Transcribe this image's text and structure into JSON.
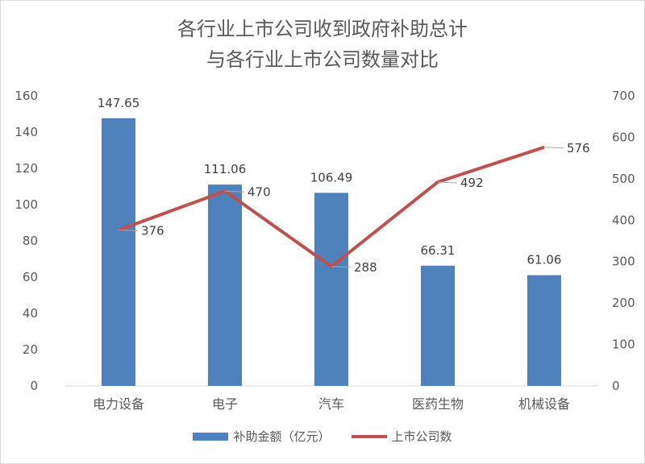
{
  "chart_data": {
    "type": "bar",
    "title_line1": "各行业上市公司收到政府补助总计",
    "title_line2": "与各行业上市公司数量对比",
    "categories": [
      "电力设备",
      "电子",
      "汽车",
      "医药生物",
      "机械设备"
    ],
    "series": [
      {
        "name": "补助金额（亿元）",
        "type": "bar",
        "axis": "left",
        "color": "#4f81bd",
        "values": [
          147.65,
          111.06,
          106.49,
          66.31,
          61.06
        ],
        "labels": [
          "147.65",
          "111.06",
          "106.49",
          "66.31",
          "61.06"
        ]
      },
      {
        "name": "上市公司数",
        "type": "line",
        "axis": "right",
        "color": "#c0504d",
        "values": [
          376,
          470,
          288,
          492,
          576
        ],
        "labels": [
          "376",
          "470",
          "288",
          "492",
          "576"
        ]
      }
    ],
    "y_left": {
      "min": 0,
      "max": 160,
      "step": 20,
      "ticks": [
        "0",
        "20",
        "40",
        "60",
        "80",
        "100",
        "120",
        "140",
        "160"
      ]
    },
    "y_right": {
      "min": 0,
      "max": 700,
      "step": 100,
      "ticks": [
        "0",
        "100",
        "200",
        "300",
        "400",
        "500",
        "600",
        "700"
      ]
    },
    "grid": false,
    "legend_position": "bottom"
  }
}
